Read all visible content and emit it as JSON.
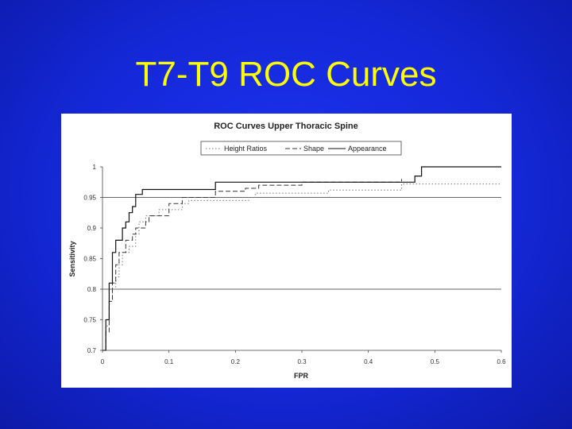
{
  "slide": {
    "title": "T7-T9 ROC Curves"
  },
  "chart_data": {
    "type": "line",
    "title": "ROC Curves Upper Thoracic Spine",
    "xlabel": "FPR",
    "ylabel": "Sensitivity",
    "xlim": [
      0,
      0.6
    ],
    "ylim": [
      0.7,
      1
    ],
    "x_ticks": [
      "0",
      "0.1",
      "0.2",
      "0.3",
      "0.4",
      "0.5",
      "0.6"
    ],
    "y_ticks": [
      "0.7",
      "0.75",
      "0.8",
      "0.85",
      "0.9",
      "0.95",
      "1"
    ],
    "grid_y": [
      0.8,
      0.95
    ],
    "legend_position": "top",
    "series": [
      {
        "name": "Height Ratios",
        "style": "dotted",
        "color": "#777777",
        "points": [
          [
            0,
            0.7
          ],
          [
            0.005,
            0.7
          ],
          [
            0.005,
            0.74
          ],
          [
            0.01,
            0.74
          ],
          [
            0.01,
            0.78
          ],
          [
            0.015,
            0.78
          ],
          [
            0.015,
            0.8
          ],
          [
            0.02,
            0.8
          ],
          [
            0.02,
            0.82
          ],
          [
            0.025,
            0.82
          ],
          [
            0.025,
            0.84
          ],
          [
            0.03,
            0.84
          ],
          [
            0.03,
            0.86
          ],
          [
            0.04,
            0.86
          ],
          [
            0.04,
            0.87
          ],
          [
            0.05,
            0.87
          ],
          [
            0.05,
            0.89
          ],
          [
            0.055,
            0.89
          ],
          [
            0.055,
            0.91
          ],
          [
            0.065,
            0.91
          ],
          [
            0.065,
            0.92
          ],
          [
            0.085,
            0.92
          ],
          [
            0.085,
            0.93
          ],
          [
            0.12,
            0.93
          ],
          [
            0.12,
            0.94
          ],
          [
            0.13,
            0.94
          ],
          [
            0.13,
            0.945
          ],
          [
            0.22,
            0.945
          ],
          [
            0.22,
            0.95
          ],
          [
            0.23,
            0.95
          ],
          [
            0.23,
            0.957
          ],
          [
            0.34,
            0.957
          ],
          [
            0.34,
            0.962
          ],
          [
            0.45,
            0.962
          ],
          [
            0.45,
            0.972
          ],
          [
            0.6,
            0.972
          ]
        ]
      },
      {
        "name": "Shape",
        "style": "dashed",
        "color": "#333333",
        "points": [
          [
            0.005,
            0.7
          ],
          [
            0.005,
            0.73
          ],
          [
            0.01,
            0.73
          ],
          [
            0.01,
            0.78
          ],
          [
            0.015,
            0.78
          ],
          [
            0.015,
            0.81
          ],
          [
            0.02,
            0.81
          ],
          [
            0.02,
            0.84
          ],
          [
            0.025,
            0.84
          ],
          [
            0.025,
            0.86
          ],
          [
            0.035,
            0.86
          ],
          [
            0.035,
            0.88
          ],
          [
            0.045,
            0.88
          ],
          [
            0.045,
            0.89
          ],
          [
            0.05,
            0.89
          ],
          [
            0.05,
            0.9
          ],
          [
            0.065,
            0.9
          ],
          [
            0.065,
            0.91
          ],
          [
            0.07,
            0.91
          ],
          [
            0.07,
            0.92
          ],
          [
            0.1,
            0.92
          ],
          [
            0.1,
            0.94
          ],
          [
            0.12,
            0.94
          ],
          [
            0.12,
            0.95
          ],
          [
            0.17,
            0.95
          ],
          [
            0.17,
            0.96
          ],
          [
            0.215,
            0.96
          ],
          [
            0.215,
            0.965
          ],
          [
            0.235,
            0.965
          ],
          [
            0.235,
            0.97
          ],
          [
            0.3,
            0.97
          ],
          [
            0.3,
            0.975
          ],
          [
            0.45,
            0.975
          ],
          [
            0.45,
            0.98
          ]
        ]
      },
      {
        "name": "Appearance",
        "style": "solid",
        "color": "#111111",
        "points": [
          [
            0,
            0.7
          ],
          [
            0.005,
            0.7
          ],
          [
            0.005,
            0.75
          ],
          [
            0.01,
            0.75
          ],
          [
            0.01,
            0.81
          ],
          [
            0.015,
            0.81
          ],
          [
            0.015,
            0.86
          ],
          [
            0.02,
            0.86
          ],
          [
            0.02,
            0.88
          ],
          [
            0.03,
            0.88
          ],
          [
            0.03,
            0.9
          ],
          [
            0.035,
            0.9
          ],
          [
            0.035,
            0.91
          ],
          [
            0.04,
            0.91
          ],
          [
            0.04,
            0.925
          ],
          [
            0.045,
            0.925
          ],
          [
            0.045,
            0.935
          ],
          [
            0.05,
            0.935
          ],
          [
            0.05,
            0.955
          ],
          [
            0.06,
            0.955
          ],
          [
            0.06,
            0.963
          ],
          [
            0.17,
            0.963
          ],
          [
            0.17,
            0.975
          ],
          [
            0.47,
            0.975
          ],
          [
            0.47,
            0.985
          ],
          [
            0.48,
            0.985
          ],
          [
            0.48,
            1
          ],
          [
            0.6,
            1
          ]
        ]
      }
    ]
  }
}
